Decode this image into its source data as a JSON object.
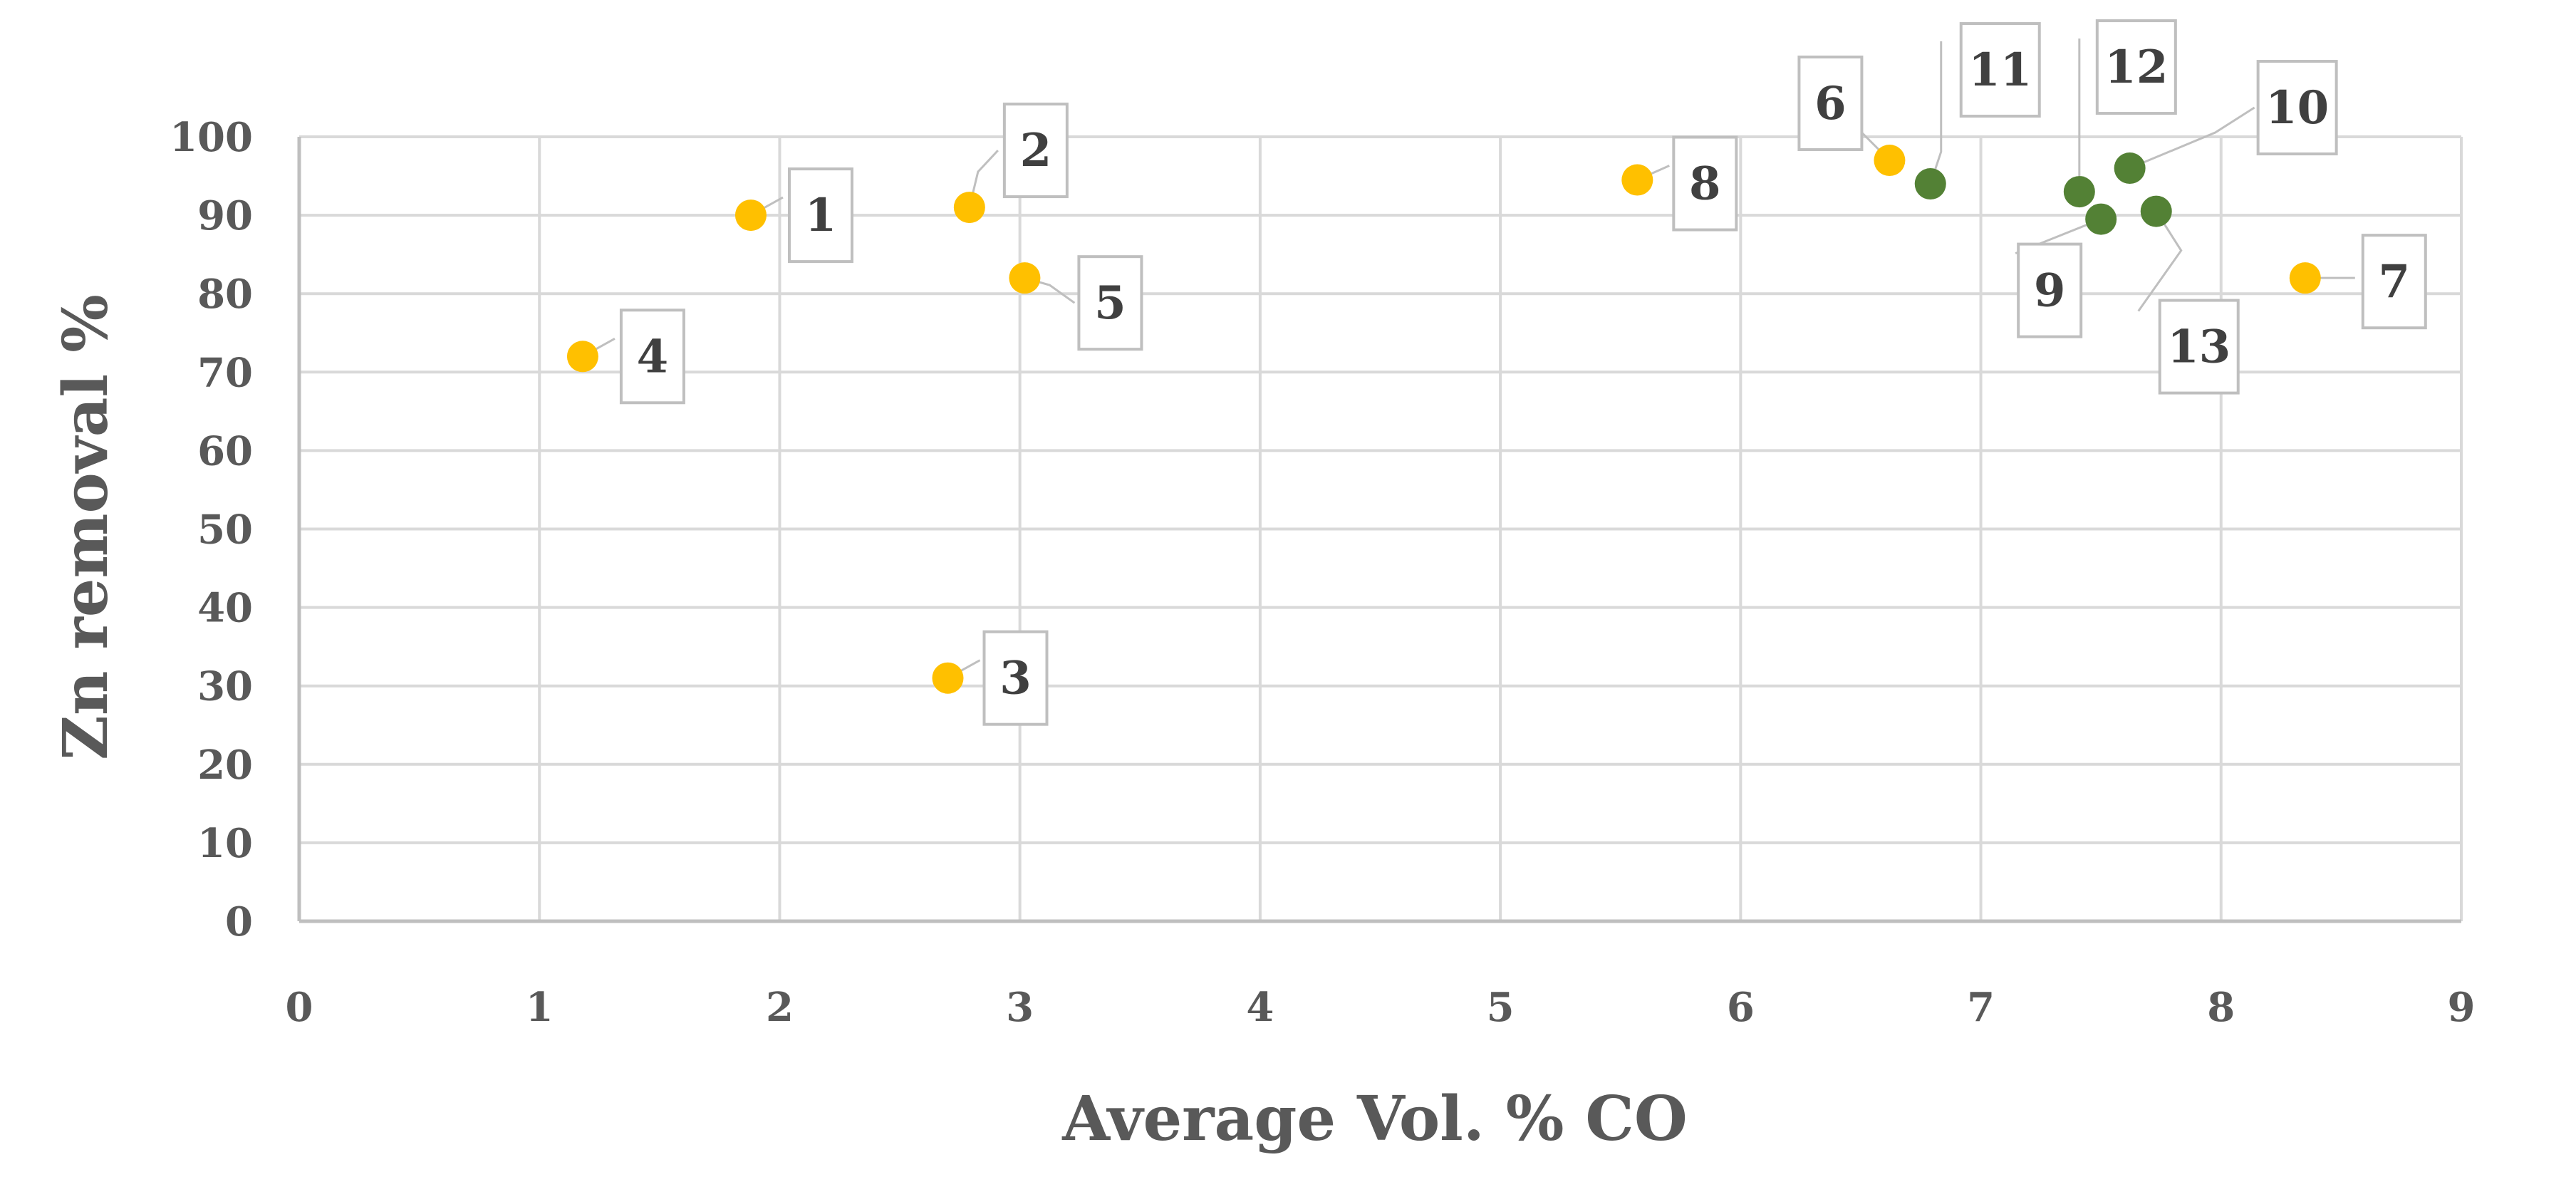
{
  "chart_data": {
    "type": "scatter",
    "title": "",
    "xlabel": "Average Vol. % CO",
    "ylabel": "Zn removal %",
    "xlim": [
      0,
      9
    ],
    "ylim": [
      0,
      100
    ],
    "xticks": [
      "0",
      "1",
      "2",
      "3",
      "4",
      "5",
      "6",
      "7",
      "8",
      "9"
    ],
    "yticks": [
      "0",
      "10",
      "20",
      "30",
      "40",
      "50",
      "60",
      "70",
      "80",
      "90",
      "100"
    ],
    "grid": true,
    "colors": {
      "orange": "#ffc000",
      "green": "#538135"
    },
    "points": [
      {
        "label": "1",
        "x": 1.88,
        "y": 90,
        "color": "orange"
      },
      {
        "label": "2",
        "x": 2.79,
        "y": 91,
        "color": "orange"
      },
      {
        "label": "3",
        "x": 2.7,
        "y": 31,
        "color": "orange"
      },
      {
        "label": "4",
        "x": 1.18,
        "y": 72,
        "color": "orange"
      },
      {
        "label": "5",
        "x": 3.02,
        "y": 82,
        "color": "orange"
      },
      {
        "label": "6",
        "x": 6.62,
        "y": 97,
        "color": "orange"
      },
      {
        "label": "7",
        "x": 8.35,
        "y": 82,
        "color": "orange"
      },
      {
        "label": "8",
        "x": 5.57,
        "y": 94.5,
        "color": "orange"
      },
      {
        "label": "9",
        "x": 7.5,
        "y": 89.5,
        "color": "green"
      },
      {
        "label": "10",
        "x": 7.62,
        "y": 96,
        "color": "green"
      },
      {
        "label": "11",
        "x": 6.79,
        "y": 94,
        "color": "green"
      },
      {
        "label": "12",
        "x": 7.41,
        "y": 93,
        "color": "green"
      },
      {
        "label": "13",
        "x": 7.73,
        "y": 90.5,
        "color": "green"
      }
    ]
  }
}
